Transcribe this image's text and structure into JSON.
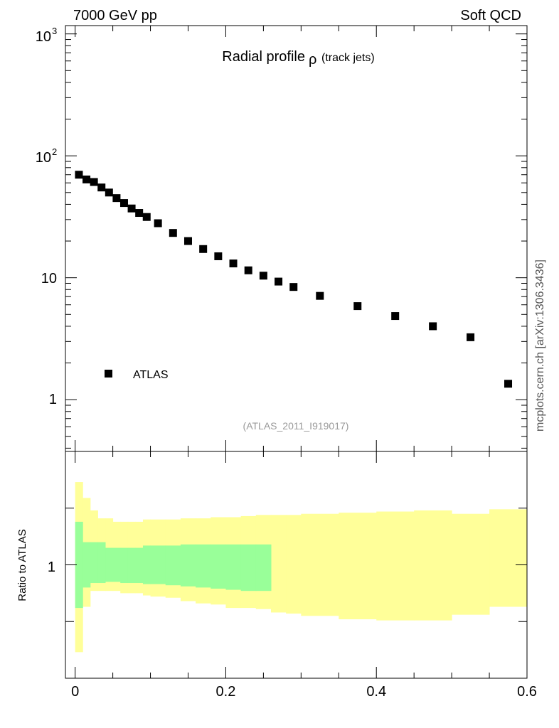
{
  "header": {
    "left": "7000 GeV pp",
    "right": "Soft QCD"
  },
  "side_label": "mcplots.cern.ch [arXiv:1306.3436]",
  "colors": {
    "marker": "#000000",
    "band_outer": "#ffff99",
    "band_inner": "#99ff99",
    "analysis_tag": "#999999"
  },
  "chart_data": [
    {
      "type": "scatter",
      "title": "Radial profile",
      "title_symbol": "ρ",
      "title_suffix": "(track jets)",
      "analysis_tag": "(ATLAS_2011_I919017)",
      "xlim": [
        -0.0129,
        0.6
      ],
      "ylim": [
        0.376,
        1170
      ],
      "yscale": "log",
      "ytick_labels": [
        "1",
        "10",
        "10",
        "10"
      ],
      "ytick_exponents": [
        "",
        "",
        "2",
        "3"
      ],
      "series": [
        {
          "name": "ATLAS",
          "x": [
            0.005,
            0.015,
            0.025,
            0.035,
            0.045,
            0.055,
            0.065,
            0.075,
            0.085,
            0.095,
            0.11,
            0.13,
            0.15,
            0.17,
            0.19,
            0.21,
            0.23,
            0.25,
            0.27,
            0.29,
            0.325,
            0.375,
            0.425,
            0.475,
            0.525,
            0.575
          ],
          "y": [
            70,
            64,
            61,
            55,
            50,
            45,
            41,
            37,
            34,
            31.5,
            28,
            23.3,
            20,
            17.2,
            15,
            13.1,
            11.5,
            10.4,
            9.3,
            8.4,
            7.1,
            5.85,
            4.85,
            4.0,
            3.25,
            1.35
          ]
        }
      ],
      "legend_position": "bottom-left"
    },
    {
      "type": "area",
      "ylabel": "Ratio to ATLAS",
      "xlim": [
        -0.0129,
        0.6
      ],
      "ylim": [
        0.5,
        1.5
      ],
      "xtick_labels": [
        "0",
        "0.2",
        "0.4",
        "0.6"
      ],
      "ytick_labels": [
        "1"
      ],
      "bins": [
        {
          "lo": 0.0,
          "hi": 0.01,
          "outer": [
            0.615,
            1.365
          ],
          "inner": [
            0.81,
            1.19
          ]
        },
        {
          "lo": 0.01,
          "hi": 0.02,
          "outer": [
            0.815,
            1.295
          ],
          "inner": [
            0.9,
            1.1
          ]
        },
        {
          "lo": 0.02,
          "hi": 0.03,
          "outer": [
            0.885,
            1.24
          ],
          "inner": [
            0.92,
            1.1
          ]
        },
        {
          "lo": 0.03,
          "hi": 0.04,
          "outer": [
            0.885,
            1.205
          ],
          "inner": [
            0.92,
            1.1
          ]
        },
        {
          "lo": 0.04,
          "hi": 0.05,
          "outer": [
            0.885,
            1.205
          ],
          "inner": [
            0.925,
            1.075
          ]
        },
        {
          "lo": 0.05,
          "hi": 0.06,
          "outer": [
            0.885,
            1.19
          ],
          "inner": [
            0.925,
            1.075
          ]
        },
        {
          "lo": 0.06,
          "hi": 0.07,
          "outer": [
            0.875,
            1.19
          ],
          "inner": [
            0.92,
            1.075
          ]
        },
        {
          "lo": 0.07,
          "hi": 0.08,
          "outer": [
            0.875,
            1.19
          ],
          "inner": [
            0.92,
            1.075
          ]
        },
        {
          "lo": 0.08,
          "hi": 0.09,
          "outer": [
            0.875,
            1.19
          ],
          "inner": [
            0.92,
            1.075
          ]
        },
        {
          "lo": 0.09,
          "hi": 0.1,
          "outer": [
            0.865,
            1.2
          ],
          "inner": [
            0.915,
            1.085
          ]
        },
        {
          "lo": 0.1,
          "hi": 0.12,
          "outer": [
            0.86,
            1.2
          ],
          "inner": [
            0.915,
            1.085
          ]
        },
        {
          "lo": 0.12,
          "hi": 0.14,
          "outer": [
            0.855,
            1.2
          ],
          "inner": [
            0.91,
            1.085
          ]
        },
        {
          "lo": 0.14,
          "hi": 0.16,
          "outer": [
            0.84,
            1.205
          ],
          "inner": [
            0.905,
            1.09
          ]
        },
        {
          "lo": 0.16,
          "hi": 0.18,
          "outer": [
            0.83,
            1.205
          ],
          "inner": [
            0.9,
            1.09
          ]
        },
        {
          "lo": 0.18,
          "hi": 0.2,
          "outer": [
            0.825,
            1.21
          ],
          "inner": [
            0.895,
            1.09
          ]
        },
        {
          "lo": 0.2,
          "hi": 0.22,
          "outer": [
            0.81,
            1.21
          ],
          "inner": [
            0.89,
            1.09
          ]
        },
        {
          "lo": 0.22,
          "hi": 0.24,
          "outer": [
            0.81,
            1.215
          ],
          "inner": [
            0.885,
            1.09
          ]
        },
        {
          "lo": 0.24,
          "hi": 0.26,
          "outer": [
            0.805,
            1.22
          ],
          "inner": [
            0.885,
            1.09
          ]
        },
        {
          "lo": 0.26,
          "hi": 0.28,
          "outer": [
            0.79,
            1.22
          ]
        },
        {
          "lo": 0.28,
          "hi": 0.3,
          "outer": [
            0.785,
            1.22
          ]
        },
        {
          "lo": 0.3,
          "hi": 0.35,
          "outer": [
            0.775,
            1.225
          ]
        },
        {
          "lo": 0.35,
          "hi": 0.4,
          "outer": [
            0.76,
            1.23
          ]
        },
        {
          "lo": 0.4,
          "hi": 0.45,
          "outer": [
            0.755,
            1.235
          ]
        },
        {
          "lo": 0.45,
          "hi": 0.5,
          "outer": [
            0.755,
            1.24
          ]
        },
        {
          "lo": 0.5,
          "hi": 0.55,
          "outer": [
            0.78,
            1.225
          ]
        },
        {
          "lo": 0.55,
          "hi": 0.6,
          "outer": [
            0.815,
            1.245
          ]
        }
      ]
    }
  ]
}
